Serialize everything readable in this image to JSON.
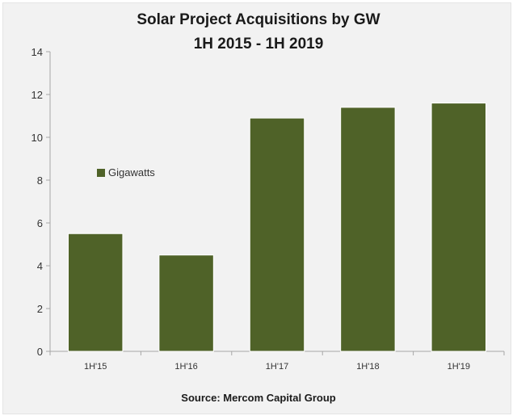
{
  "chart_data": {
    "type": "bar",
    "title": "Solar Project Acquisitions by GW",
    "subtitle": "1H 2015 - 1H 2019",
    "categories": [
      "1H'15",
      "1H'16",
      "1H'17",
      "1H'18",
      "1H'19"
    ],
    "series": [
      {
        "name": "Gigawatts",
        "values": [
          5.5,
          4.5,
          10.9,
          11.4,
          11.6
        ],
        "color": "#4f6228"
      }
    ],
    "xlabel": "",
    "ylabel": "",
    "ylim": [
      0,
      14
    ],
    "yticks": [
      0,
      2,
      4,
      6,
      8,
      10,
      12,
      14
    ],
    "grid": false,
    "legend": "left",
    "source": "Source: Mercom Capital Group"
  }
}
